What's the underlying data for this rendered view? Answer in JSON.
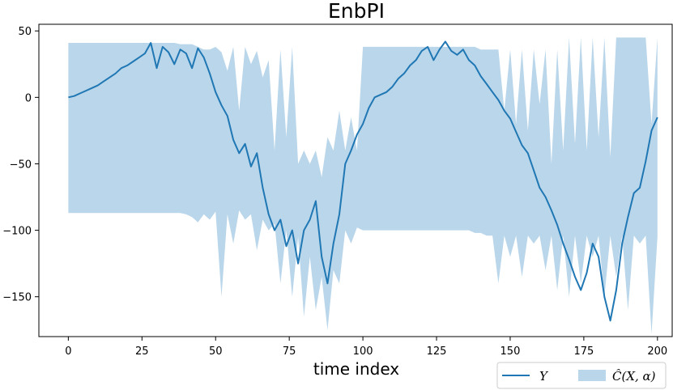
{
  "chart_data": {
    "type": "line",
    "title": "EnbPI",
    "xlabel": "time index",
    "ylabel": "",
    "xlim": [
      -10,
      205
    ],
    "ylim": [
      -180,
      55
    ],
    "xticks": [
      0,
      25,
      50,
      75,
      100,
      125,
      150,
      175,
      200
    ],
    "yticks": [
      -150,
      -100,
      -50,
      0,
      50
    ],
    "grid": false,
    "legend_position": "lower-right",
    "colors": {
      "line": "#1f77b4",
      "band": "#bad6ea"
    },
    "series": [
      {
        "name": "Y",
        "type": "line",
        "x": [
          0,
          2,
          4,
          6,
          8,
          10,
          12,
          14,
          16,
          18,
          20,
          22,
          24,
          26,
          28,
          30,
          32,
          34,
          36,
          38,
          40,
          42,
          44,
          46,
          48,
          50,
          52,
          54,
          56,
          58,
          60,
          62,
          64,
          66,
          68,
          70,
          72,
          74,
          76,
          78,
          80,
          82,
          84,
          86,
          88,
          90,
          92,
          94,
          96,
          98,
          100,
          102,
          104,
          106,
          108,
          110,
          112,
          114,
          116,
          118,
          120,
          122,
          124,
          126,
          128,
          130,
          132,
          134,
          136,
          138,
          140,
          142,
          144,
          146,
          148,
          150,
          152,
          154,
          156,
          158,
          160,
          162,
          164,
          166,
          168,
          170,
          172,
          174,
          176,
          178,
          180,
          182,
          184,
          186,
          188,
          190,
          192,
          194,
          196,
          198,
          200
        ],
        "values": [
          0,
          1,
          3,
          5,
          7,
          9,
          12,
          15,
          18,
          22,
          24,
          27,
          30,
          33,
          41,
          22,
          38,
          34,
          25,
          36,
          33,
          22,
          37,
          30,
          18,
          4,
          -6,
          -14,
          -32,
          -42,
          -35,
          -52,
          -42,
          -68,
          -88,
          -100,
          -92,
          -112,
          -100,
          -125,
          -100,
          -92,
          -78,
          -120,
          -140,
          -110,
          -88,
          -50,
          -40,
          -28,
          -20,
          -8,
          0,
          2,
          4,
          8,
          14,
          18,
          24,
          28,
          35,
          38,
          28,
          36,
          42,
          35,
          32,
          36,
          28,
          24,
          16,
          10,
          4,
          -2,
          -10,
          -16,
          -26,
          -36,
          -42,
          -55,
          -68,
          -75,
          -85,
          -96,
          -110,
          -122,
          -135,
          -145,
          -132,
          -110,
          -120,
          -150,
          -168,
          -145,
          -110,
          -90,
          -72,
          -68,
          -48,
          -25,
          -15
        ]
      },
      {
        "name": "Ĉ(X, α)",
        "type": "area",
        "x": [
          0,
          2,
          4,
          6,
          8,
          10,
          12,
          14,
          16,
          18,
          20,
          22,
          24,
          26,
          28,
          30,
          32,
          34,
          36,
          38,
          40,
          42,
          44,
          46,
          48,
          50,
          52,
          54,
          56,
          58,
          60,
          62,
          64,
          66,
          68,
          70,
          72,
          74,
          76,
          78,
          80,
          82,
          84,
          86,
          88,
          90,
          92,
          94,
          96,
          98,
          100,
          102,
          104,
          106,
          108,
          110,
          112,
          114,
          116,
          118,
          120,
          122,
          124,
          126,
          128,
          130,
          132,
          134,
          136,
          138,
          140,
          142,
          144,
          146,
          148,
          150,
          152,
          154,
          156,
          158,
          160,
          162,
          164,
          166,
          168,
          170,
          172,
          174,
          176,
          178,
          180,
          182,
          184,
          186,
          188,
          190,
          192,
          194,
          196,
          198,
          200
        ],
        "upper": [
          41,
          41,
          41,
          41,
          41,
          41,
          41,
          41,
          41,
          41,
          41,
          41,
          41,
          41,
          41,
          41,
          41,
          41,
          41,
          40,
          40,
          40,
          38,
          36,
          36,
          38,
          34,
          20,
          38,
          -10,
          38,
          25,
          35,
          15,
          28,
          -40,
          36,
          -30,
          38,
          -50,
          -40,
          -50,
          -40,
          -60,
          -30,
          -40,
          -10,
          -40,
          -15,
          -40,
          38,
          38,
          38,
          38,
          38,
          38,
          38,
          38,
          38,
          38,
          38,
          38,
          38,
          38,
          38,
          38,
          38,
          38,
          38,
          38,
          36,
          36,
          36,
          36,
          -10,
          36,
          -20,
          36,
          -25,
          36,
          -5,
          36,
          -50,
          36,
          -40,
          45,
          -35,
          45,
          -40,
          45,
          -30,
          45,
          -45,
          45,
          45,
          45,
          45,
          45,
          45,
          -20,
          45
        ],
        "lower": [
          -87,
          -87,
          -87,
          -87,
          -87,
          -87,
          -87,
          -87,
          -87,
          -87,
          -87,
          -87,
          -87,
          -87,
          -87,
          -87,
          -87,
          -87,
          -87,
          -87,
          -88,
          -90,
          -94,
          -88,
          -92,
          -86,
          -150,
          -88,
          -110,
          -85,
          -92,
          -88,
          -115,
          -92,
          -100,
          -95,
          -140,
          -100,
          -150,
          -105,
          -165,
          -120,
          -160,
          -135,
          -175,
          -130,
          -140,
          -100,
          -110,
          -98,
          -100,
          -100,
          -100,
          -100,
          -100,
          -100,
          -100,
          -100,
          -100,
          -100,
          -100,
          -100,
          -100,
          -100,
          -100,
          -100,
          -100,
          -100,
          -100,
          -102,
          -102,
          -104,
          -104,
          -140,
          -104,
          -120,
          -104,
          -135,
          -104,
          -110,
          -104,
          -130,
          -104,
          -145,
          -104,
          -150,
          -104,
          -140,
          -104,
          -120,
          -104,
          -150,
          -104,
          -135,
          -104,
          -160,
          -104,
          -110,
          -104,
          -178,
          -105
        ]
      }
    ]
  }
}
